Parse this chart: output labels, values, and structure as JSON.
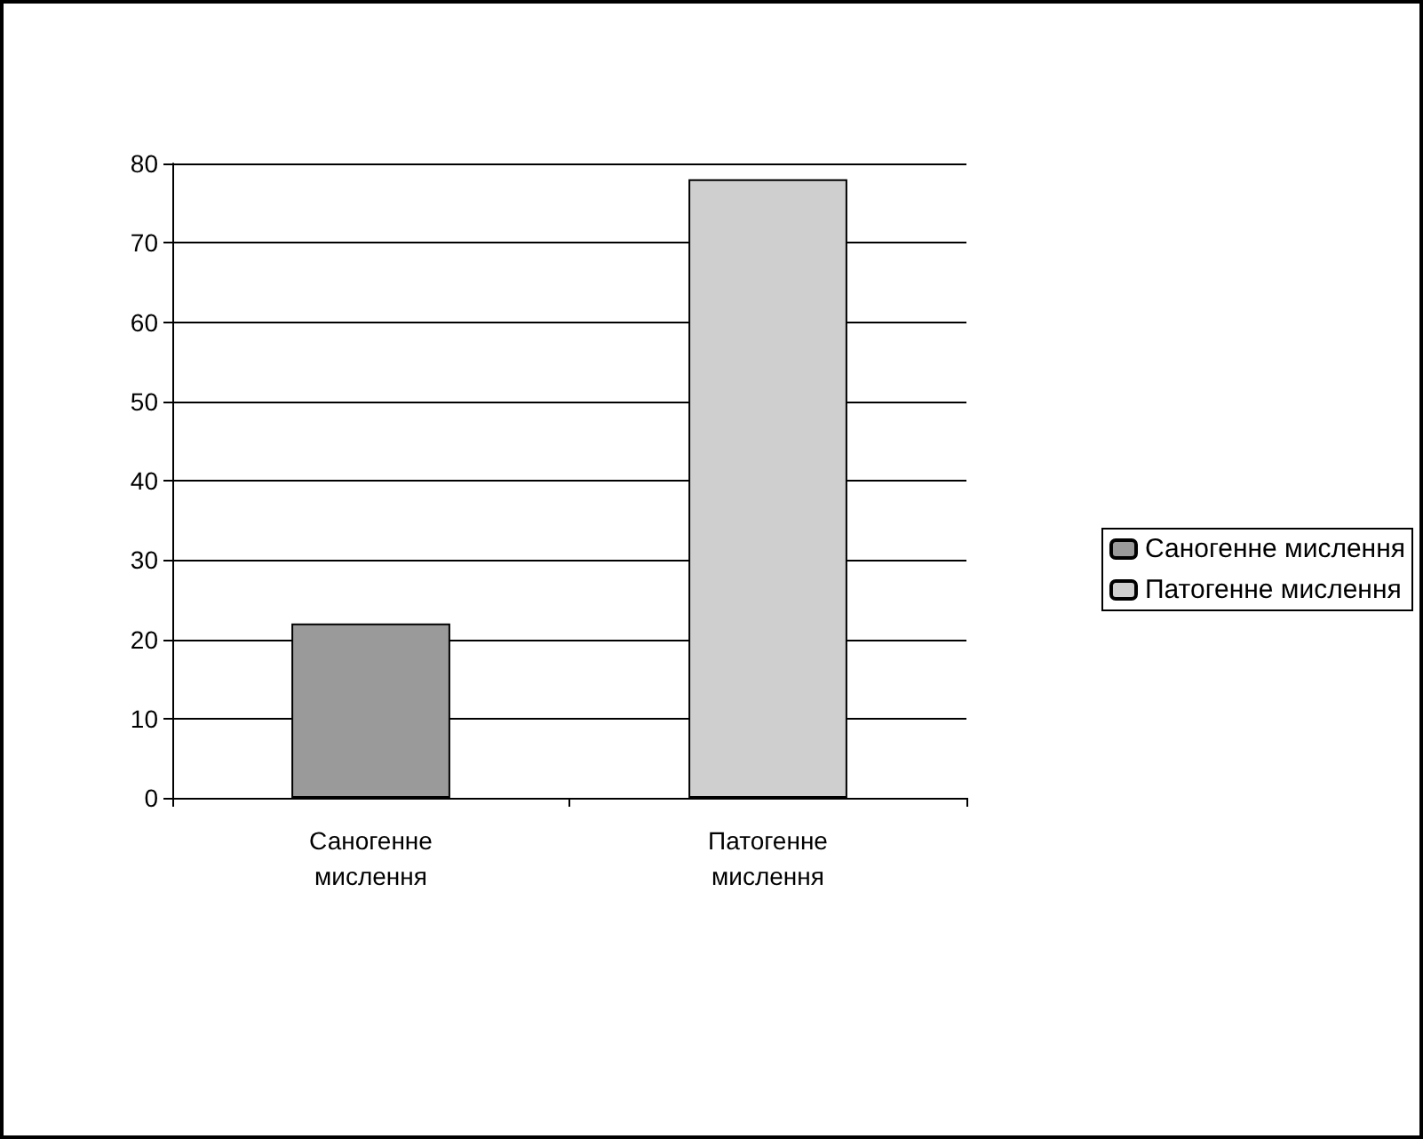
{
  "chart_data": {
    "type": "bar",
    "categories": [
      "Саногенне мислення",
      "Патогенне мислення"
    ],
    "series": [
      {
        "name": "Саногенне мислення",
        "color": "#9a9a9a",
        "values": [
          22,
          null
        ]
      },
      {
        "name": "Патогенне мислення",
        "color": "#cfcfcf",
        "values": [
          null,
          78
        ]
      }
    ],
    "ylim": [
      0,
      80
    ],
    "yticks": [
      0,
      10,
      20,
      30,
      40,
      50,
      60,
      70,
      80
    ],
    "grid": "y",
    "legend": "right"
  }
}
